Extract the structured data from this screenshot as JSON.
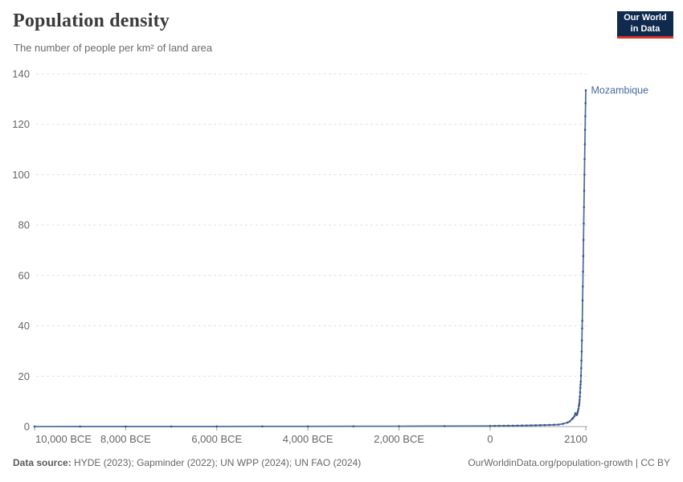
{
  "header": {
    "title": "Population density",
    "subtitle": "The number of people per km² of land area"
  },
  "logo": {
    "line1": "Our World",
    "line2": "in Data",
    "bg_color": "#102a4e",
    "accent_color": "#dc3327"
  },
  "footer": {
    "source_label": "Data source:",
    "source_text": " HYDE (2023); Gapminder (2022); UN WPP (2024); UN FAO (2024)",
    "attribution": "OurWorldinData.org/population-growth | CC BY"
  },
  "chart_data": {
    "type": "line",
    "title": "Population density",
    "subtitle": "The number of people per km² of land area",
    "xlabel": "",
    "ylabel": "",
    "xlim": [
      -10000,
      2135
    ],
    "ylim": [
      0,
      140
    ],
    "grid": "horizontal-dashed",
    "legend_position": "end-of-line-label",
    "grid_color": "#e1e1e1",
    "axis_line_color": "#a3a3a3",
    "tick_color": "#9a9a9a",
    "tick_label_color": "#666666",
    "y_ticks": [
      0,
      20,
      40,
      60,
      80,
      100,
      120,
      140
    ],
    "x_ticks": [
      {
        "year": -10000,
        "label": "10,000 BCE"
      },
      {
        "year": -8000,
        "label": "8,000 BCE"
      },
      {
        "year": -6000,
        "label": "6,000 BCE"
      },
      {
        "year": -4000,
        "label": "4,000 BCE"
      },
      {
        "year": -2000,
        "label": "2,000 BCE"
      },
      {
        "year": 0,
        "label": "0"
      },
      {
        "year": 2100,
        "label": "2100"
      }
    ],
    "series": [
      {
        "name": "Mozambique",
        "end_label": "Mozambique",
        "color": "#4c6a9c",
        "marker_color": "#3a5488",
        "points": [
          [
            -10000,
            0.02
          ],
          [
            -9000,
            0.03
          ],
          [
            -8000,
            0.03
          ],
          [
            -7000,
            0.04
          ],
          [
            -6000,
            0.05
          ],
          [
            -5000,
            0.07
          ],
          [
            -4000,
            0.08
          ],
          [
            -3000,
            0.11
          ],
          [
            -2000,
            0.14
          ],
          [
            -1000,
            0.19
          ],
          [
            0,
            0.25
          ],
          [
            100,
            0.27
          ],
          [
            200,
            0.29
          ],
          [
            300,
            0.31
          ],
          [
            400,
            0.33
          ],
          [
            500,
            0.35
          ],
          [
            600,
            0.38
          ],
          [
            700,
            0.41
          ],
          [
            800,
            0.44
          ],
          [
            900,
            0.47
          ],
          [
            1000,
            0.51
          ],
          [
            1100,
            0.55
          ],
          [
            1200,
            0.6
          ],
          [
            1300,
            0.66
          ],
          [
            1400,
            0.72
          ],
          [
            1500,
            0.8
          ],
          [
            1600,
            1.1
          ],
          [
            1700,
            1.6
          ],
          [
            1750,
            2.1
          ],
          [
            1800,
            3.0
          ],
          [
            1820,
            3.4
          ],
          [
            1850,
            4.1
          ],
          [
            1870,
            5.3
          ],
          [
            1890,
            4.8
          ],
          [
            1900,
            4.6
          ],
          [
            1910,
            5.0
          ],
          [
            1920,
            5.6
          ],
          [
            1930,
            6.3
          ],
          [
            1940,
            7.1
          ],
          [
            1950,
            8.2
          ],
          [
            1955,
            8.8
          ],
          [
            1960,
            9.6
          ],
          [
            1965,
            10.6
          ],
          [
            1970,
            11.9
          ],
          [
            1975,
            13.6
          ],
          [
            1980,
            15.4
          ],
          [
            1985,
            16.7
          ],
          [
            1990,
            17.8
          ],
          [
            1995,
            20.2
          ],
          [
            2000,
            23.2
          ],
          [
            2005,
            26.2
          ],
          [
            2010,
            29.8
          ],
          [
            2015,
            34.2
          ],
          [
            2020,
            39.0
          ],
          [
            2023,
            42.0
          ],
          [
            2030,
            50.1
          ],
          [
            2035,
            55.6
          ],
          [
            2040,
            61.5
          ],
          [
            2045,
            67.7
          ],
          [
            2050,
            74.1
          ],
          [
            2055,
            80.6
          ],
          [
            2060,
            87.1
          ],
          [
            2065,
            93.6
          ],
          [
            2070,
            100.0
          ],
          [
            2075,
            106.2
          ],
          [
            2080,
            112.1
          ],
          [
            2085,
            117.8
          ],
          [
            2090,
            123.2
          ],
          [
            2095,
            128.4
          ],
          [
            2100,
            133.5
          ]
        ]
      }
    ]
  }
}
